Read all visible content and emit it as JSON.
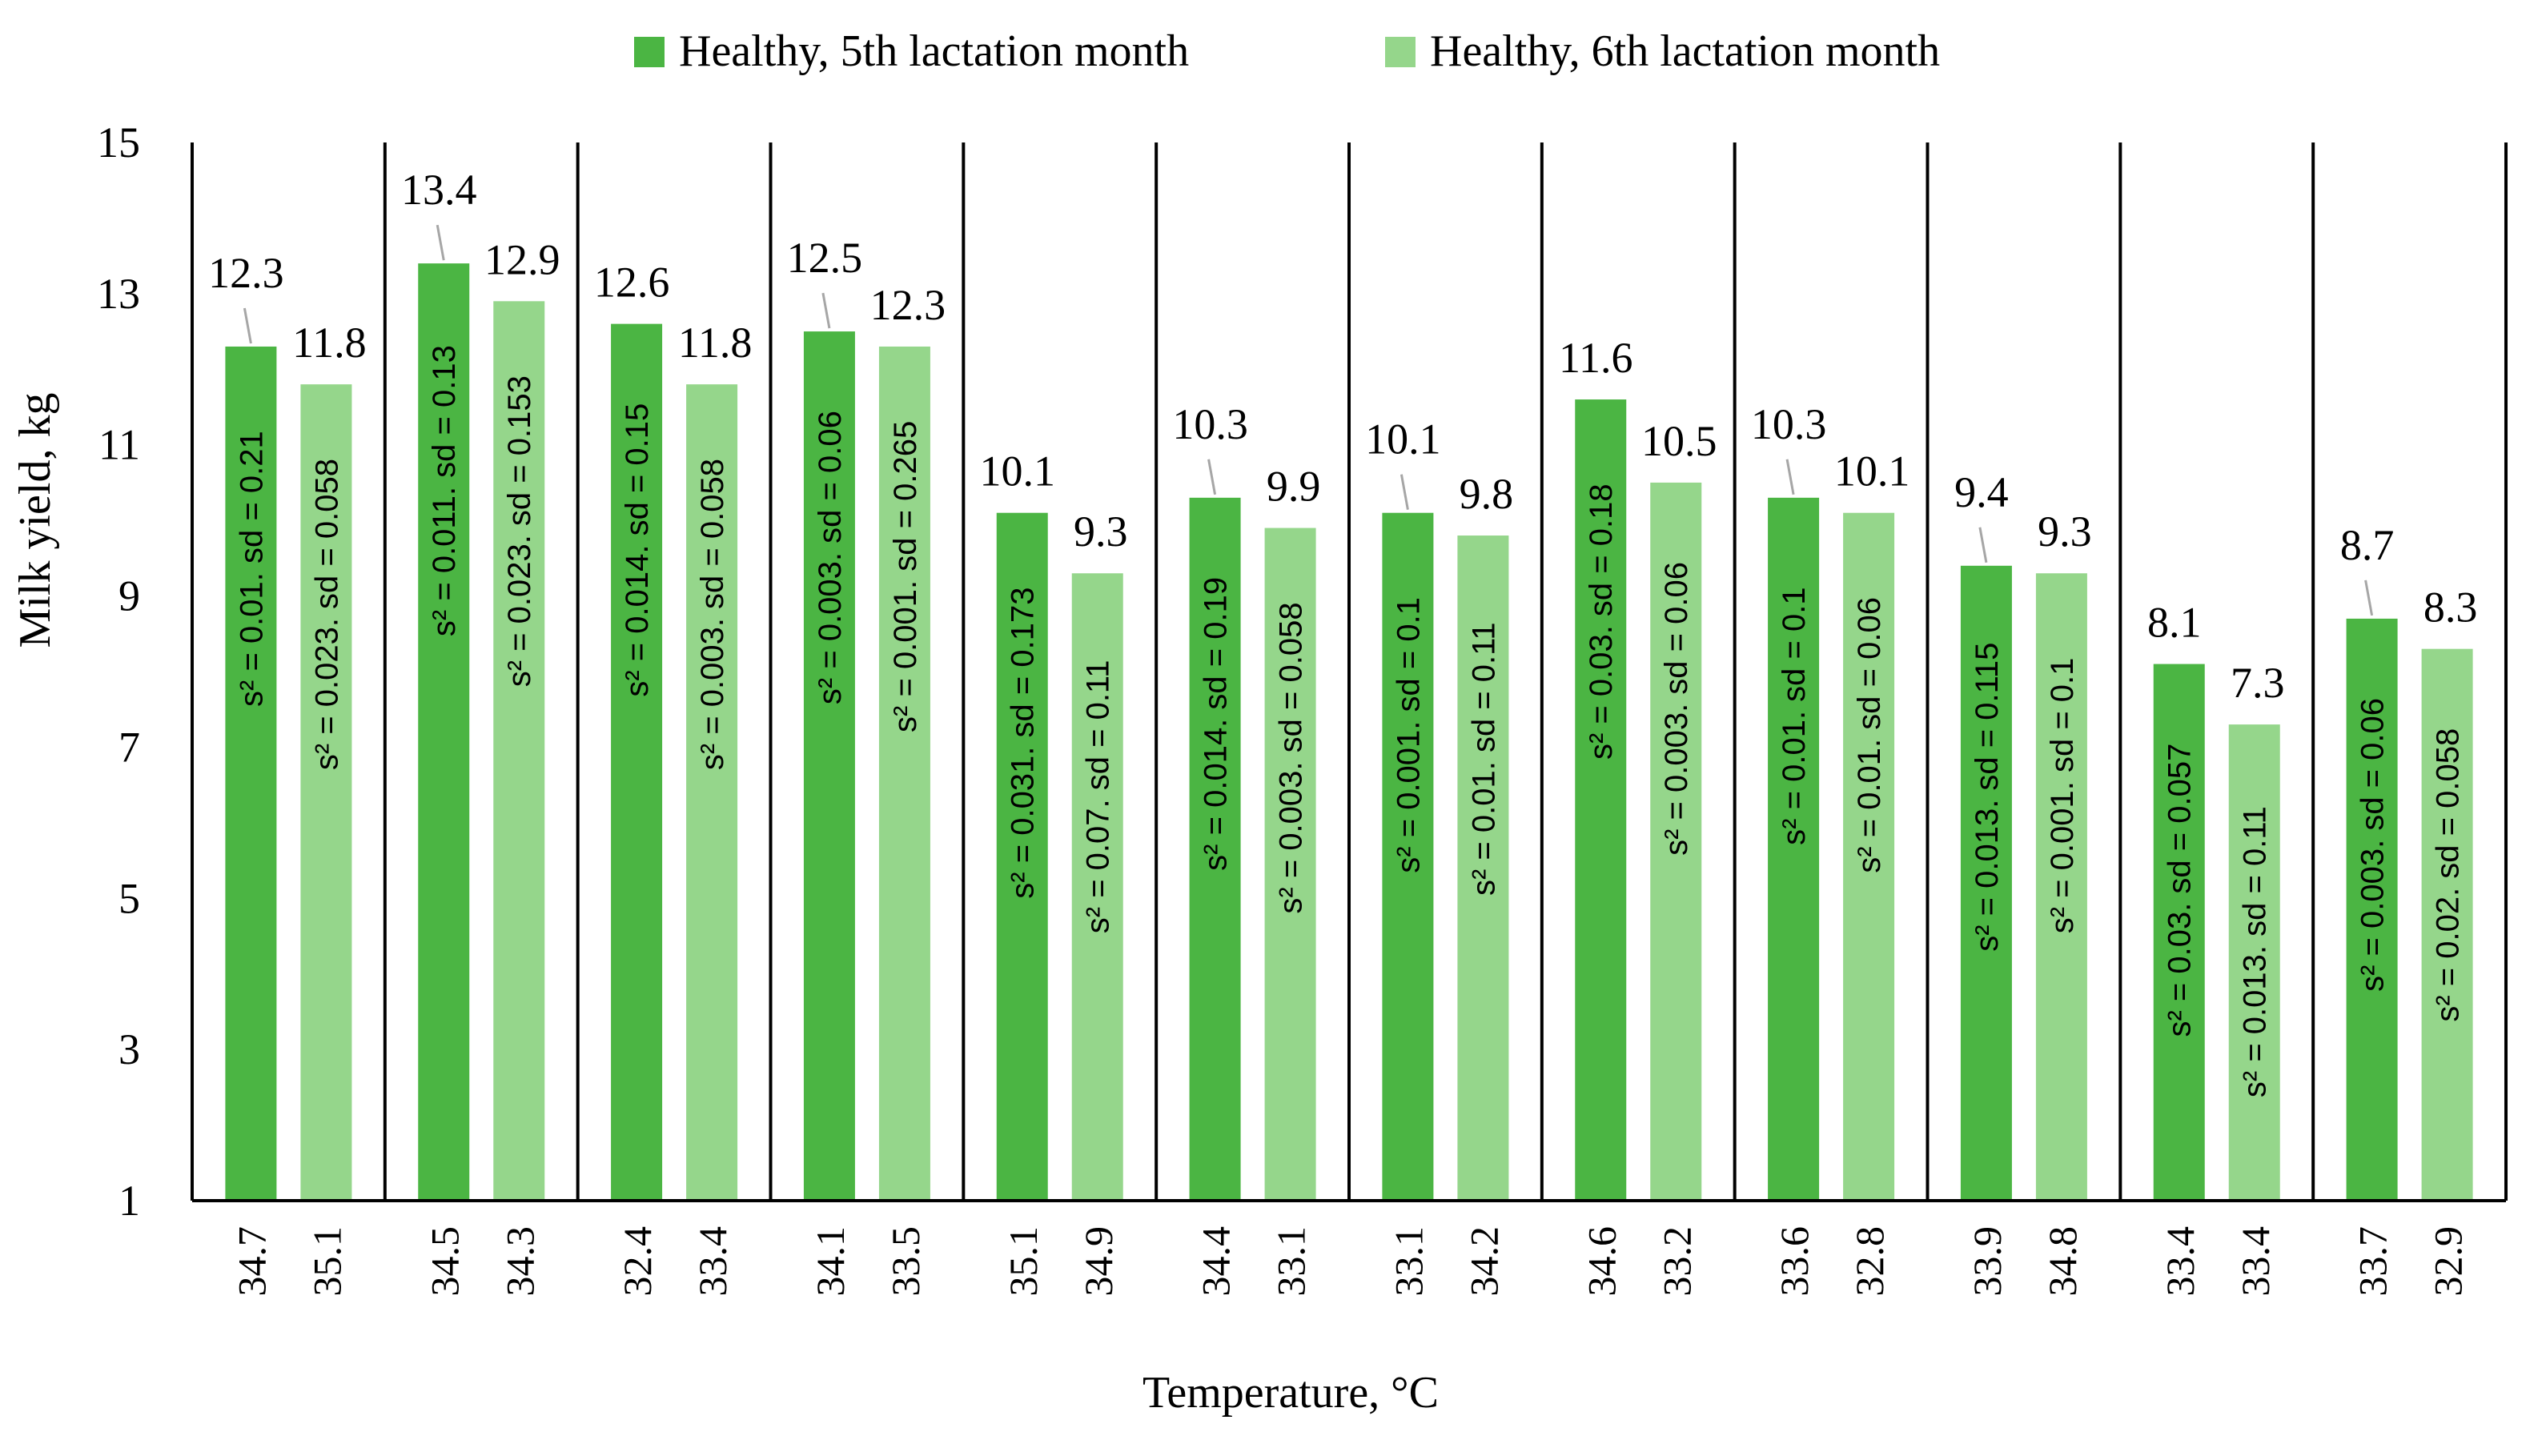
{
  "chart_data": {
    "type": "bar",
    "title": "",
    "xlabel": "Temperature, °C",
    "ylabel": "Milk yield, kg",
    "ylim": [
      1,
      15
    ],
    "yticks": [
      1,
      3,
      5,
      7,
      9,
      11,
      13,
      15
    ],
    "legend_position": "top-center",
    "colors": {
      "series1": "#4bb543",
      "series2": "#95d68b",
      "axis": "#000000",
      "leader": "#a6a6a6"
    },
    "series": [
      {
        "name": "Healthy, 5th lactation month",
        "values": [
          12.3,
          13.4,
          12.6,
          12.5,
          10.1,
          10.3,
          10.1,
          11.6,
          10.3,
          9.4,
          8.1,
          8.7
        ]
      },
      {
        "name": "Healthy, 6th lactation month",
        "values": [
          11.8,
          12.9,
          11.8,
          12.3,
          9.3,
          9.9,
          9.8,
          10.5,
          10.1,
          9.3,
          7.3,
          8.3
        ]
      }
    ],
    "categories": [
      [
        "34.7",
        "35.1"
      ],
      [
        "34.5",
        "34.3"
      ],
      [
        "32.4",
        "33.4"
      ],
      [
        "34.1",
        "33.5"
      ],
      [
        "35.1",
        "34.9"
      ],
      [
        "34.4",
        "33.1"
      ],
      [
        "33.1",
        "34.2"
      ],
      [
        "34.6",
        "33.2"
      ],
      [
        "33.6",
        "32.8"
      ],
      [
        "33.9",
        "34.8"
      ],
      [
        "33.4",
        "33.4"
      ],
      [
        "33.7",
        "32.9"
      ]
    ],
    "bar_annotations": [
      [
        "s² = 0.01. sd = 0.21",
        "s² = 0.023. sd = 0.058"
      ],
      [
        "s² = 0.011. sd = 0.13",
        "s² = 0.023. sd = 0.153"
      ],
      [
        "s² = 0.014. sd = 0.15",
        "s² = 0.003. sd = 0.058"
      ],
      [
        "s² = 0.003. sd = 0.06",
        "s² = 0.001. sd = 0.265"
      ],
      [
        "s² = 0.031. sd = 0.173",
        "s² = 0.07. sd = 0.11"
      ],
      [
        "s² = 0.014. sd = 0.19",
        "s² = 0.003. sd = 0.058"
      ],
      [
        "s² = 0.001. sd = 0.1",
        "s² = 0.01. sd = 0.11"
      ],
      [
        "s² = 0.03. sd = 0.18",
        "s² = 0.003. sd = 0.06"
      ],
      [
        "s² = 0.01. sd = 0.1",
        "s² = 0.01. sd = 0.06"
      ],
      [
        "s² = 0.013. sd = 0.115",
        "s² = 0.001. sd = 0.1"
      ],
      [
        "s² = 0.03. sd = 0.057",
        "s² = 0.013. sd = 0.11"
      ],
      [
        "s² = 0.003. sd = 0.06",
        "s² = 0.02. sd = 0.058"
      ]
    ]
  }
}
